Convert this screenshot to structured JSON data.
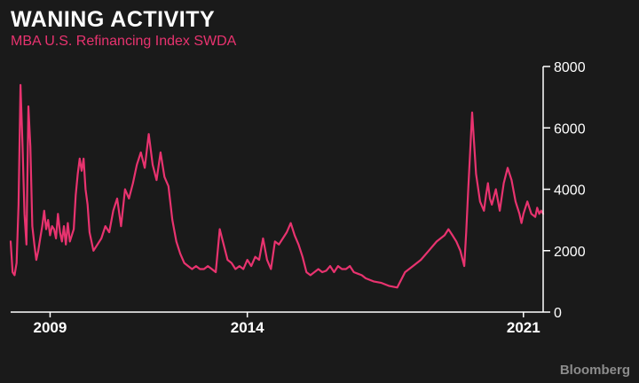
{
  "title": "WANING ACTIVITY",
  "subtitle": "MBA U.S. Refinancing Index SWDA",
  "credit": "Bloomberg",
  "colors": {
    "background": "#1a1a1a",
    "series": "#e8336f",
    "text": "#ffffff",
    "axis": "#ffffff",
    "credit": "#8c8c8c"
  },
  "chart_data": {
    "type": "line",
    "title": "WANING ACTIVITY",
    "subtitle": "MBA U.S. Refinancing Index SWDA",
    "xlabel": "",
    "ylabel": "",
    "xlim": [
      2008.0,
      2021.5
    ],
    "ylim": [
      0,
      8000
    ],
    "yticks": [
      0,
      2000,
      4000,
      6000,
      8000
    ],
    "ytick_labels": [
      "0",
      "2000",
      "4000",
      "6000",
      "8000"
    ],
    "xticks": [
      2009,
      2014,
      2021
    ],
    "xtick_labels": [
      "2009",
      "2014",
      "2021"
    ],
    "y_axis_position": "right",
    "grid": false,
    "legend": "none",
    "series": [
      {
        "x": [
          2008.0,
          2008.05,
          2008.1,
          2008.15,
          2008.2,
          2008.25,
          2008.3,
          2008.35,
          2008.4,
          2008.45,
          2008.5,
          2008.55,
          2008.6,
          2008.65,
          2008.7,
          2008.75,
          2008.8,
          2008.85,
          2008.9,
          2008.95,
          2009.0,
          2009.05,
          2009.1,
          2009.15,
          2009.2,
          2009.25,
          2009.3,
          2009.35,
          2009.4,
          2009.45,
          2009.5,
          2009.55,
          2009.6,
          2009.65,
          2009.7,
          2009.75,
          2009.8,
          2009.85,
          2009.9,
          2009.95,
          2010.0,
          2010.1,
          2010.2,
          2010.3,
          2010.4,
          2010.5,
          2010.6,
          2010.7,
          2010.8,
          2010.9,
          2011.0,
          2011.1,
          2011.2,
          2011.3,
          2011.4,
          2011.5,
          2011.6,
          2011.7,
          2011.8,
          2011.9,
          2012.0,
          2012.1,
          2012.2,
          2012.3,
          2012.4,
          2012.5,
          2012.6,
          2012.7,
          2012.8,
          2012.9,
          2013.0,
          2013.1,
          2013.2,
          2013.3,
          2013.4,
          2013.5,
          2013.6,
          2013.7,
          2013.8,
          2013.9,
          2014.0,
          2014.1,
          2014.2,
          2014.3,
          2014.4,
          2014.5,
          2014.6,
          2014.7,
          2014.8,
          2014.9,
          2015.0,
          2015.1,
          2015.2,
          2015.3,
          2015.4,
          2015.5,
          2015.6,
          2015.7,
          2015.8,
          2015.9,
          2016.0,
          2016.1,
          2016.2,
          2016.3,
          2016.4,
          2016.5,
          2016.6,
          2016.7,
          2016.8,
          2016.9,
          2017.0,
          2017.2,
          2017.4,
          2017.6,
          2017.8,
          2018.0,
          2018.2,
          2018.4,
          2018.6,
          2018.8,
          2019.0,
          2019.1,
          2019.2,
          2019.3,
          2019.4,
          2019.5,
          2019.55,
          2019.6,
          2019.7,
          2019.8,
          2019.9,
          2020.0,
          2020.05,
          2020.1,
          2020.15,
          2020.2,
          2020.3,
          2020.4,
          2020.5,
          2020.6,
          2020.7,
          2020.8,
          2020.9,
          2020.95,
          2021.0,
          2021.1,
          2021.2,
          2021.3,
          2021.35,
          2021.4,
          2021.45,
          2021.5
        ],
        "y": [
          2300,
          1300,
          1200,
          1600,
          3500,
          7400,
          5500,
          3200,
          2200,
          6700,
          5400,
          2800,
          2200,
          1700,
          2000,
          2400,
          2800,
          3300,
          2700,
          3000,
          2500,
          2800,
          2700,
          2400,
          3200,
          2600,
          2300,
          2800,
          2200,
          2900,
          2300,
          2500,
          2700,
          3800,
          4500,
          5000,
          4600,
          5000,
          4000,
          3500,
          2600,
          2000,
          2200,
          2400,
          2800,
          2600,
          3300,
          3700,
          2800,
          4000,
          3700,
          4200,
          4800,
          5200,
          4700,
          5800,
          4800,
          4300,
          5200,
          4400,
          4100,
          3000,
          2300,
          1900,
          1600,
          1500,
          1400,
          1500,
          1400,
          1400,
          1500,
          1400,
          1300,
          2700,
          2200,
          1700,
          1600,
          1400,
          1500,
          1400,
          1700,
          1500,
          1800,
          1700,
          2400,
          1700,
          1400,
          2300,
          2200,
          2400,
          2600,
          2900,
          2500,
          2200,
          1800,
          1300,
          1200,
          1300,
          1400,
          1300,
          1350,
          1500,
          1300,
          1500,
          1400,
          1400,
          1500,
          1300,
          1250,
          1200,
          1100,
          1000,
          950,
          850,
          800,
          1300,
          1500,
          1700,
          2000,
          2300,
          2500,
          2700,
          2500,
          2300,
          2000,
          1500,
          2600,
          4000,
          6500,
          4500,
          3600,
          3300,
          3800,
          4200,
          3700,
          3500,
          4000,
          3300,
          4200,
          4700,
          4300,
          3600,
          3200,
          2900,
          3200,
          3600,
          3200,
          3100,
          3400,
          3200,
          3300,
          3200
        ]
      }
    ]
  }
}
